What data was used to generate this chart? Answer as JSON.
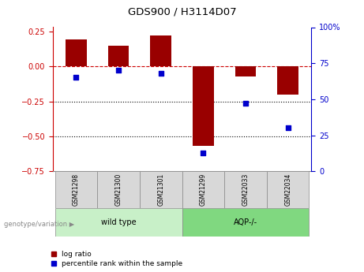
{
  "title": "GDS900 / H3114D07",
  "samples": [
    "GSM21298",
    "GSM21300",
    "GSM21301",
    "GSM21299",
    "GSM22033",
    "GSM22034"
  ],
  "log_ratio": [
    0.19,
    0.15,
    0.22,
    -0.57,
    -0.07,
    -0.2
  ],
  "percentile_rank": [
    65,
    70,
    68,
    13,
    47,
    30
  ],
  "groups": [
    {
      "label": "wild type",
      "indices": [
        0,
        1,
        2
      ],
      "color": "#c8f0c8"
    },
    {
      "label": "AQP-/-",
      "indices": [
        3,
        4,
        5
      ],
      "color": "#80d880"
    }
  ],
  "bar_color": "#990000",
  "scatter_color": "#0000cc",
  "ylim_left": [
    -0.75,
    0.28
  ],
  "ylim_right": [
    0,
    100
  ],
  "yticks_left": [
    -0.75,
    -0.5,
    -0.25,
    0,
    0.25
  ],
  "yticks_right": [
    0,
    25,
    50,
    75,
    100
  ],
  "ytick_labels_right": [
    "0",
    "25",
    "50",
    "75",
    "100%"
  ],
  "hline_y": 0,
  "dotted_lines": [
    -0.25,
    -0.5
  ],
  "left_axis_color": "#cc0000",
  "right_axis_color": "#0000cc",
  "bar_width": 0.5,
  "sample_box_color": "#d8d8d8",
  "group_label_prefix": "genotype/variation"
}
